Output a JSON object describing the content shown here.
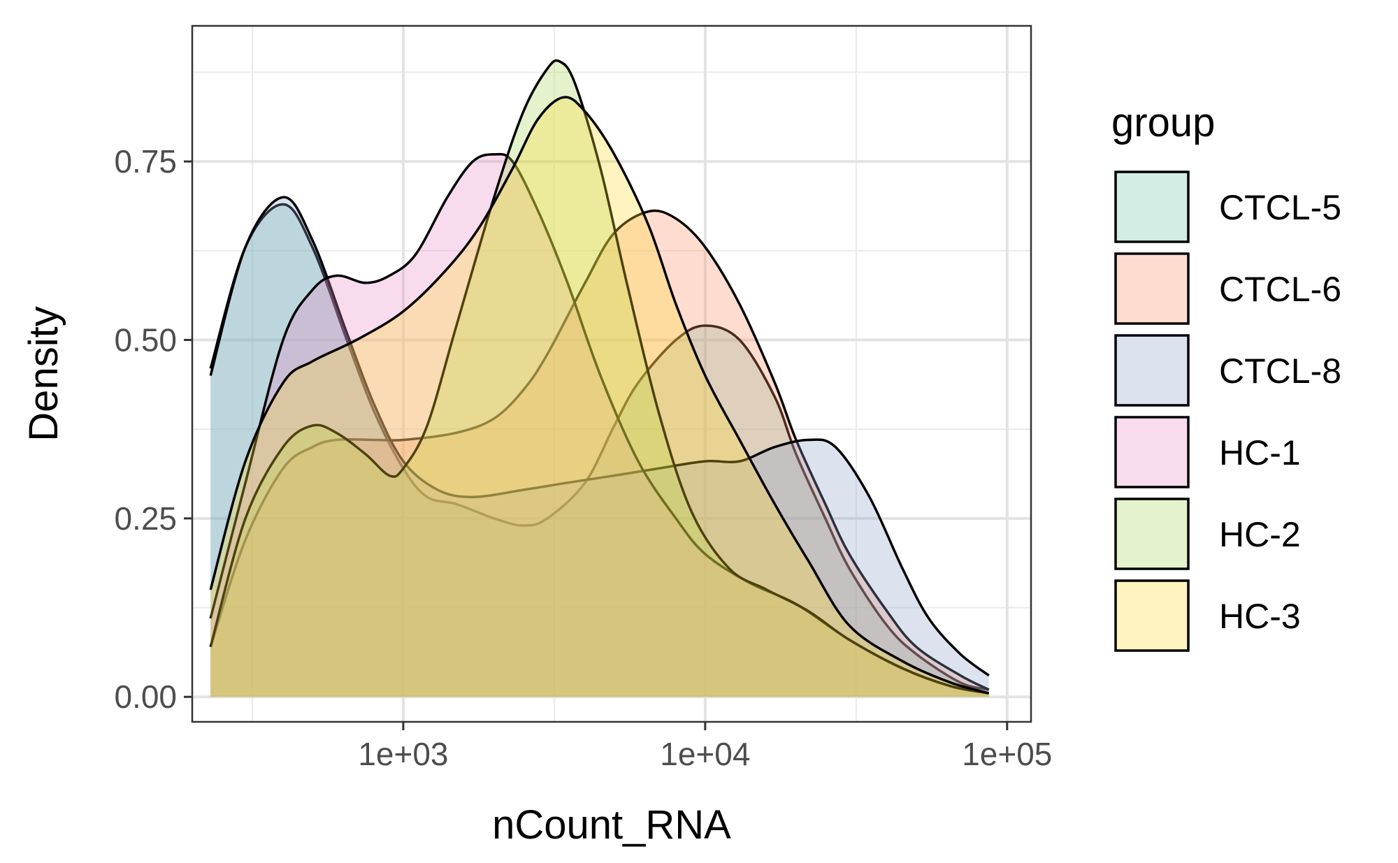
{
  "chart_data": {
    "type": "area",
    "subtype": "density",
    "xlabel": "nCount_RNA",
    "ylabel": "Density",
    "x_scale": "log10",
    "xlim": [
      200,
      120000
    ],
    "ylim": [
      -0.035,
      0.94
    ],
    "x_ticks": [
      1000,
      10000,
      100000
    ],
    "x_tick_labels": [
      "1e+03",
      "1e+04",
      "1e+05"
    ],
    "y_ticks": [
      0,
      0.25,
      0.5,
      0.75
    ],
    "y_tick_labels": [
      "0.00",
      "0.25",
      "0.50",
      "0.75"
    ],
    "grid": true,
    "legend_title": "group",
    "legend_position": "right",
    "series": [
      {
        "name": "CTCL-5",
        "color": "#66c2a5",
        "points": [
          [
            230,
            0.46
          ],
          [
            300,
            0.63
          ],
          [
            400,
            0.69
          ],
          [
            500,
            0.63
          ],
          [
            650,
            0.5
          ],
          [
            800,
            0.4
          ],
          [
            1000,
            0.32
          ],
          [
            1200,
            0.28
          ],
          [
            1500,
            0.27
          ],
          [
            2000,
            0.25
          ],
          [
            2500,
            0.24
          ],
          [
            3000,
            0.25
          ],
          [
            4000,
            0.3
          ],
          [
            5000,
            0.38
          ],
          [
            6000,
            0.44
          ],
          [
            8000,
            0.5
          ],
          [
            10000,
            0.52
          ],
          [
            13000,
            0.5
          ],
          [
            17000,
            0.42
          ],
          [
            20000,
            0.34
          ],
          [
            25000,
            0.25
          ],
          [
            30000,
            0.18
          ],
          [
            40000,
            0.1
          ],
          [
            50000,
            0.06
          ],
          [
            70000,
            0.02
          ],
          [
            87000,
            0.01
          ]
        ]
      },
      {
        "name": "CTCL-6",
        "color": "#fc8d62",
        "points": [
          [
            230,
            0.07
          ],
          [
            300,
            0.22
          ],
          [
            400,
            0.32
          ],
          [
            500,
            0.35
          ],
          [
            600,
            0.36
          ],
          [
            800,
            0.36
          ],
          [
            1000,
            0.36
          ],
          [
            1500,
            0.37
          ],
          [
            2000,
            0.39
          ],
          [
            2500,
            0.43
          ],
          [
            3000,
            0.48
          ],
          [
            4000,
            0.58
          ],
          [
            5000,
            0.65
          ],
          [
            6500,
            0.68
          ],
          [
            8000,
            0.67
          ],
          [
            10000,
            0.63
          ],
          [
            13000,
            0.55
          ],
          [
            17000,
            0.44
          ],
          [
            20000,
            0.36
          ],
          [
            25000,
            0.27
          ],
          [
            30000,
            0.2
          ],
          [
            40000,
            0.12
          ],
          [
            50000,
            0.07
          ],
          [
            70000,
            0.03
          ],
          [
            87000,
            0.01
          ]
        ]
      },
      {
        "name": "CTCL-8",
        "color": "#8da0cb",
        "points": [
          [
            230,
            0.45
          ],
          [
            300,
            0.63
          ],
          [
            400,
            0.7
          ],
          [
            500,
            0.64
          ],
          [
            650,
            0.51
          ],
          [
            800,
            0.41
          ],
          [
            1000,
            0.33
          ],
          [
            1300,
            0.29
          ],
          [
            1700,
            0.28
          ],
          [
            2500,
            0.29
          ],
          [
            3500,
            0.3
          ],
          [
            5000,
            0.31
          ],
          [
            7000,
            0.32
          ],
          [
            10000,
            0.33
          ],
          [
            13000,
            0.33
          ],
          [
            17000,
            0.35
          ],
          [
            22000,
            0.36
          ],
          [
            27000,
            0.35
          ],
          [
            35000,
            0.28
          ],
          [
            45000,
            0.18
          ],
          [
            55000,
            0.11
          ],
          [
            70000,
            0.06
          ],
          [
            87000,
            0.03
          ]
        ]
      },
      {
        "name": "HC-1",
        "color": "#e78ac3",
        "points": [
          [
            230,
            0.11
          ],
          [
            300,
            0.3
          ],
          [
            400,
            0.5
          ],
          [
            500,
            0.57
          ],
          [
            600,
            0.59
          ],
          [
            750,
            0.58
          ],
          [
            900,
            0.59
          ],
          [
            1100,
            0.62
          ],
          [
            1400,
            0.7
          ],
          [
            1700,
            0.75
          ],
          [
            2000,
            0.76
          ],
          [
            2300,
            0.75
          ],
          [
            2800,
            0.68
          ],
          [
            3500,
            0.58
          ],
          [
            4500,
            0.45
          ],
          [
            6000,
            0.33
          ],
          [
            8000,
            0.25
          ],
          [
            10000,
            0.2
          ],
          [
            14000,
            0.16
          ],
          [
            20000,
            0.13
          ],
          [
            30000,
            0.08
          ],
          [
            45000,
            0.04
          ],
          [
            65000,
            0.015
          ],
          [
            87000,
            0.005
          ]
        ]
      },
      {
        "name": "HC-2",
        "color": "#a6d854",
        "points": [
          [
            230,
            0.07
          ],
          [
            300,
            0.25
          ],
          [
            400,
            0.35
          ],
          [
            500,
            0.38
          ],
          [
            600,
            0.37
          ],
          [
            750,
            0.34
          ],
          [
            900,
            0.31
          ],
          [
            1000,
            0.32
          ],
          [
            1200,
            0.38
          ],
          [
            1500,
            0.52
          ],
          [
            2000,
            0.7
          ],
          [
            2500,
            0.82
          ],
          [
            3000,
            0.88
          ],
          [
            3300,
            0.89
          ],
          [
            3700,
            0.86
          ],
          [
            4500,
            0.74
          ],
          [
            5500,
            0.58
          ],
          [
            7000,
            0.4
          ],
          [
            9000,
            0.26
          ],
          [
            12000,
            0.18
          ],
          [
            16000,
            0.15
          ],
          [
            22000,
            0.12
          ],
          [
            30000,
            0.08
          ],
          [
            45000,
            0.04
          ],
          [
            65000,
            0.015
          ],
          [
            87000,
            0.005
          ]
        ]
      },
      {
        "name": "HC-3",
        "color": "#ffd92f",
        "points": [
          [
            230,
            0.15
          ],
          [
            300,
            0.33
          ],
          [
            400,
            0.44
          ],
          [
            500,
            0.47
          ],
          [
            700,
            0.5
          ],
          [
            1000,
            0.54
          ],
          [
            1400,
            0.6
          ],
          [
            1800,
            0.66
          ],
          [
            2300,
            0.74
          ],
          [
            2800,
            0.81
          ],
          [
            3400,
            0.84
          ],
          [
            4000,
            0.82
          ],
          [
            5000,
            0.76
          ],
          [
            6500,
            0.66
          ],
          [
            8000,
            0.55
          ],
          [
            10000,
            0.45
          ],
          [
            13000,
            0.36
          ],
          [
            17000,
            0.27
          ],
          [
            22000,
            0.19
          ],
          [
            30000,
            0.1
          ],
          [
            45000,
            0.05
          ],
          [
            65000,
            0.02
          ],
          [
            87000,
            0.005
          ]
        ]
      }
    ]
  }
}
